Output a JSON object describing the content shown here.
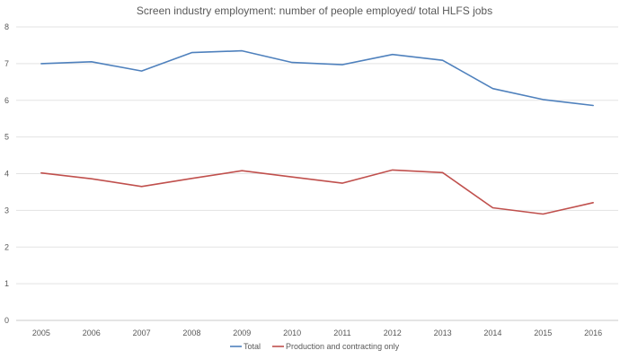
{
  "chart_data": {
    "type": "line",
    "title": "Screen industry employment: number of people employed/ total HLFS jobs",
    "xlabel": "",
    "ylabel": "",
    "ylim": [
      0,
      8
    ],
    "yticks": [
      "0",
      "1",
      "2",
      "3",
      "4",
      "5",
      "6",
      "7",
      "8"
    ],
    "categories": [
      "2005",
      "2006",
      "2007",
      "2008",
      "2009",
      "2010",
      "2011",
      "2012",
      "2013",
      "2014",
      "2015",
      "2016"
    ],
    "series": [
      {
        "name": "Total",
        "color": "#4f81bd",
        "values": [
          7.0,
          7.05,
          6.8,
          7.3,
          7.35,
          7.03,
          6.97,
          7.25,
          7.09,
          6.32,
          6.02,
          5.86
        ]
      },
      {
        "name": "Production and contracting only",
        "color": "#c0504d",
        "values": [
          4.02,
          3.86,
          3.65,
          3.87,
          4.08,
          3.91,
          3.74,
          4.1,
          4.03,
          3.07,
          2.9,
          3.21
        ]
      }
    ],
    "legend_position": "bottom-center",
    "grid": true
  }
}
